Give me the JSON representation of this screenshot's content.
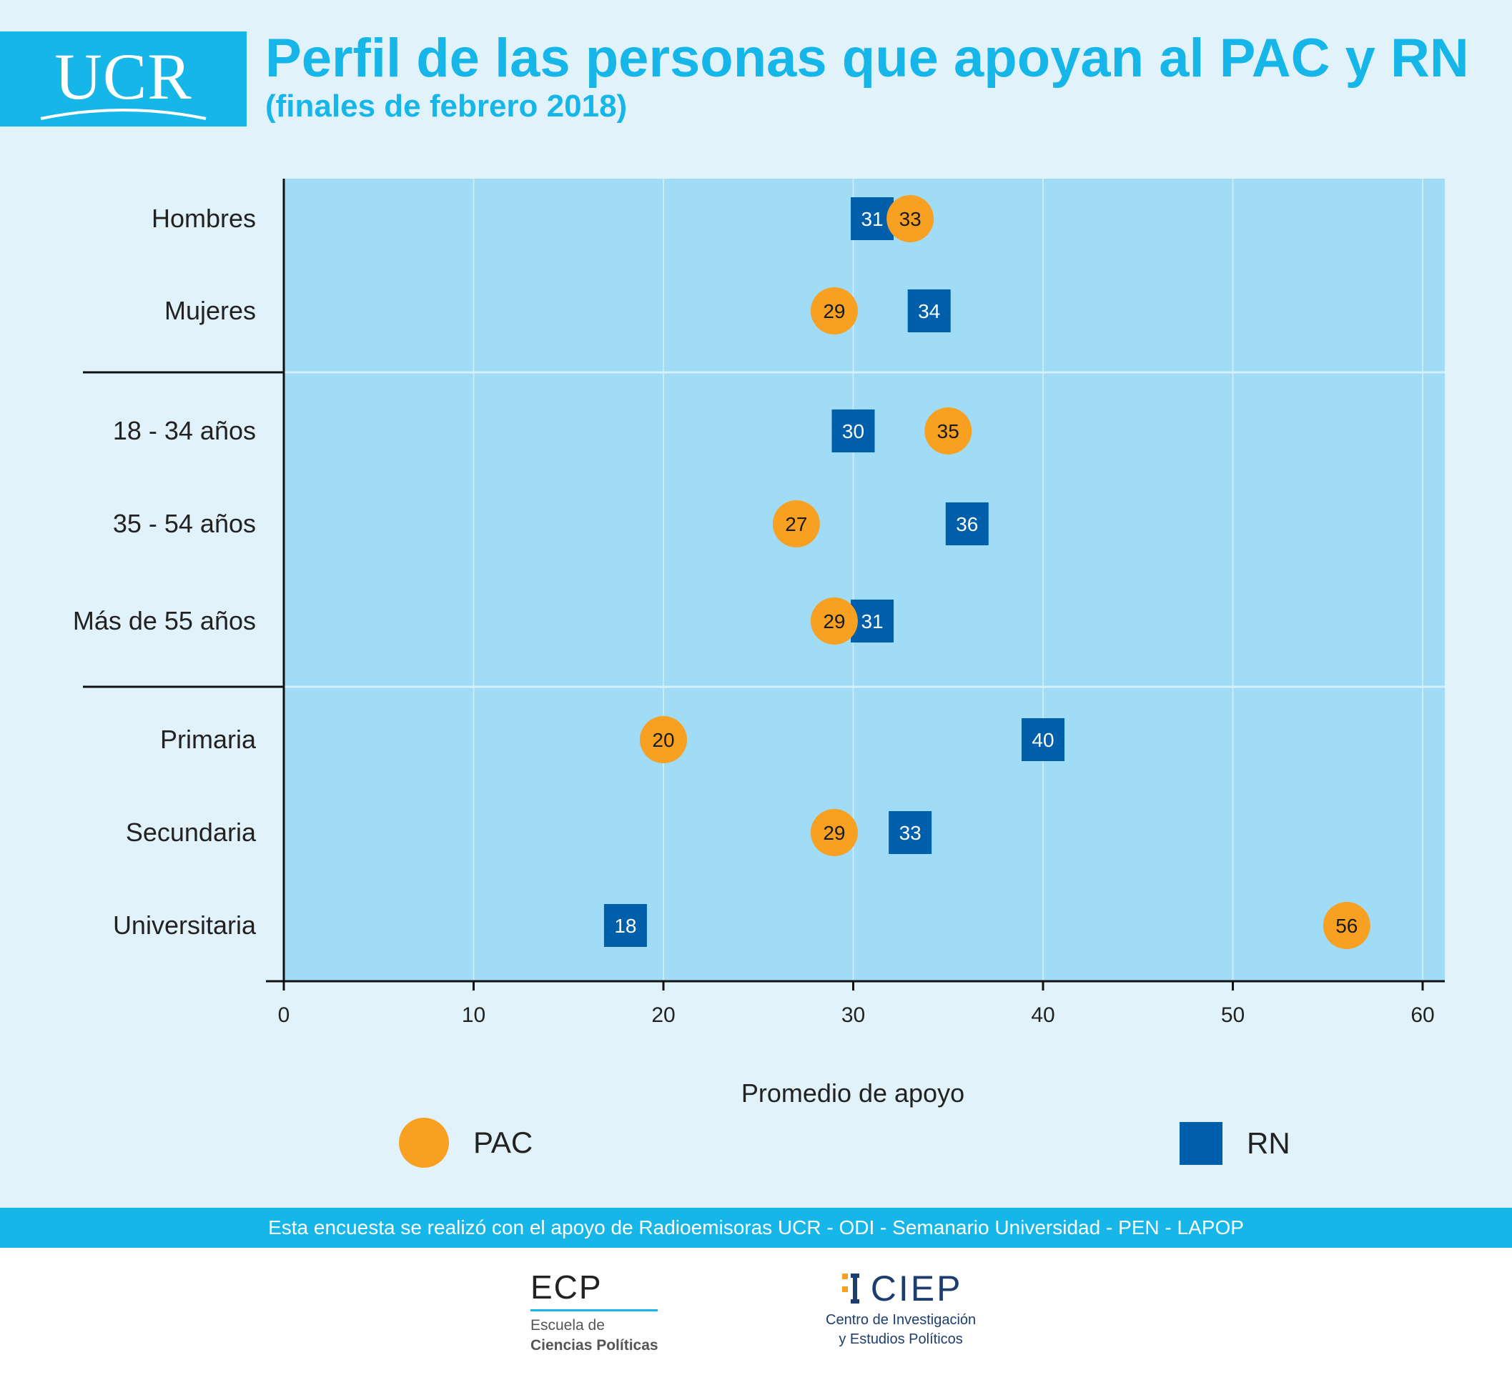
{
  "header": {
    "logo_text": "UCR",
    "title": "Perfil de las personas que apoyan al PAC y RN",
    "subtitle": "(finales de febrero 2018)"
  },
  "colors": {
    "brand": "#17b6e8",
    "plot_bg": "#a1dcf6",
    "page_bg": "#e2f2fa",
    "pac": "#f7a021",
    "rn": "#005fab"
  },
  "chart_data": {
    "type": "scatter",
    "categories": [
      "Hombres",
      "Mujeres",
      "18 - 34 años",
      "35 - 54 años",
      "Más de 55 años",
      "Primaria",
      "Secundaria",
      "Universitaria"
    ],
    "groups": [
      [
        0,
        1
      ],
      [
        2,
        3,
        4
      ],
      [
        5,
        6,
        7
      ]
    ],
    "series": [
      {
        "name": "PAC",
        "marker": "circle",
        "color": "#f7a021",
        "values": [
          33,
          29,
          35,
          27,
          29,
          20,
          29,
          56
        ]
      },
      {
        "name": "RN",
        "marker": "square",
        "color": "#005fab",
        "values": [
          31,
          34,
          30,
          36,
          31,
          40,
          33,
          18
        ]
      }
    ],
    "xlabel": "Promedio de apoyo",
    "ylabel": "",
    "xlim": [
      0,
      61
    ],
    "xticks": [
      0,
      10,
      20,
      30,
      40,
      50,
      60
    ],
    "grid": true,
    "legend_position": "bottom"
  },
  "legend": {
    "pac_label": "PAC",
    "rn_label": "RN"
  },
  "band_text": "Esta encuesta se realizó con el apoyo de Radioemisoras UCR - ODI - Semanario Universidad - PEN - LAPOP",
  "footer": {
    "ecp_abbr": "ECP",
    "ecp_line1": "Escuela de",
    "ecp_line2": "Ciencias Políticas",
    "ciep_abbr": "CIEP",
    "ciep_line1": "Centro de Investigación",
    "ciep_line2": "y Estudios Políticos"
  }
}
